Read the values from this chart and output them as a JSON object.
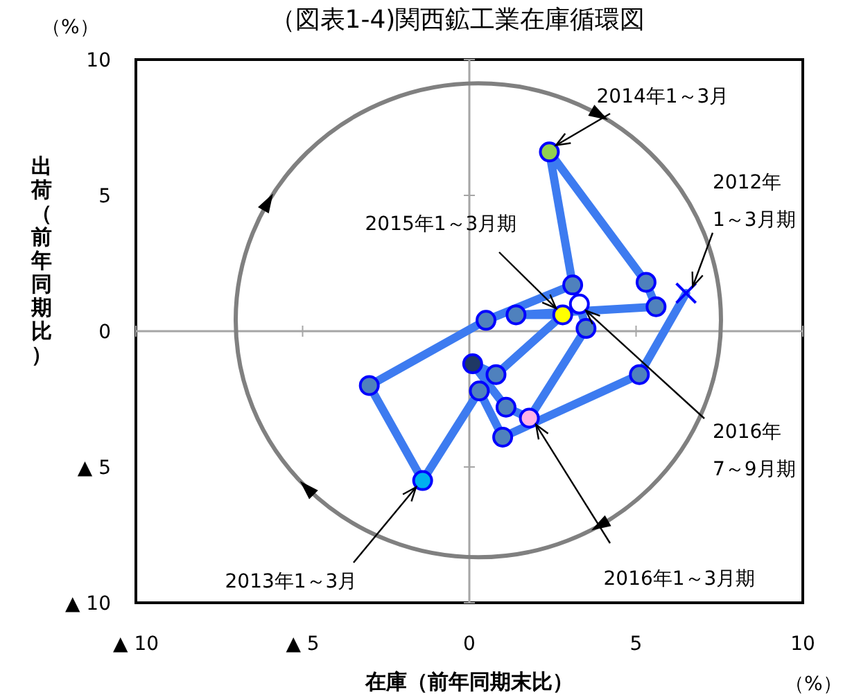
{
  "chart_data": {
    "type": "line",
    "title": "（図表1-4)関西鉱工業在庫循環図",
    "xlabel": "在庫（前年同期末比）",
    "ylabel": "出荷（前年同期比）",
    "xlim": [
      -10,
      10
    ],
    "ylim": [
      -10,
      10
    ],
    "xticks": [
      {
        "value": -10,
        "label": "▲ 10"
      },
      {
        "value": -5,
        "label": "▲ 5"
      },
      0,
      5,
      10
    ],
    "yticks": [
      {
        "value": -10,
        "label": "▲ 10"
      },
      {
        "value": -5,
        "label": "▲ 5"
      },
      0,
      5,
      10
    ],
    "series": [
      {
        "type": "line",
        "color": "#3d7bf0",
        "marker": "none",
        "x": [
          6.5,
          5.1,
          1.0,
          0.3,
          -1.4,
          -3.0,
          0.5,
          3.1,
          2.4,
          5.3,
          5.6,
          1.4,
          2.8,
          0.8,
          0.1,
          1.1,
          1.8,
          3.5,
          3.3
        ],
        "values": [
          1.4,
          -1.6,
          -3.9,
          -2.2,
          -5.5,
          -2.0,
          0.4,
          1.7,
          6.6,
          1.8,
          0.9,
          0.6,
          0.6,
          -1.6,
          -1.2,
          -2.8,
          -3.2,
          0.1,
          1.0
        ]
      },
      {
        "type": "scatter",
        "marker": "circle",
        "x": [
          5.1,
          1.0,
          0.3,
          -1.4,
          -3.0,
          0.5,
          3.1,
          2.4,
          5.3,
          5.6,
          1.4,
          2.8,
          0.8,
          0.1,
          1.1,
          1.8,
          3.5,
          3.3
        ],
        "values": [
          -1.6,
          -3.9,
          -2.2,
          -5.5,
          -2.0,
          0.4,
          1.7,
          6.6,
          1.8,
          0.9,
          0.6,
          0.6,
          -1.6,
          -1.2,
          -2.8,
          -3.2,
          0.1,
          1.0
        ],
        "colors": [
          "#4f81bd",
          "#4f81bd",
          "#4f81bd",
          "#00b0f0",
          "#4f81bd",
          "#4f81bd",
          "#4f81bd",
          "#92d050",
          "#4f81bd",
          "#4f81bd",
          "#4f81bd",
          "#ffff00",
          "#4f81bd",
          "#1f3864",
          "#4f81bd",
          "#ffb3e6",
          "#4f81bd",
          "#ffffff"
        ]
      },
      {
        "type": "scatter",
        "marker": "cross",
        "color": "#0000ff",
        "x": [
          6.5
        ],
        "values": [
          1.4
        ]
      }
    ],
    "annotations": [
      {
        "text": "2014年1～3月",
        "x": 2.4,
        "y": 6.6
      },
      {
        "text": "2012年\n1～3月期",
        "x": 6.5,
        "y": 1.4
      },
      {
        "text": "2015年1～3月期",
        "x": 2.8,
        "y": 0.6
      },
      {
        "text": "2016年\n7～9月期",
        "x": 3.3,
        "y": 1.0
      },
      {
        "text": "2016年1～3月期",
        "x": 1.8,
        "y": -3.2
      },
      {
        "text": "2013年1～3月",
        "x": -1.4,
        "y": -5.5
      },
      "（%）",
      "（%）"
    ]
  }
}
